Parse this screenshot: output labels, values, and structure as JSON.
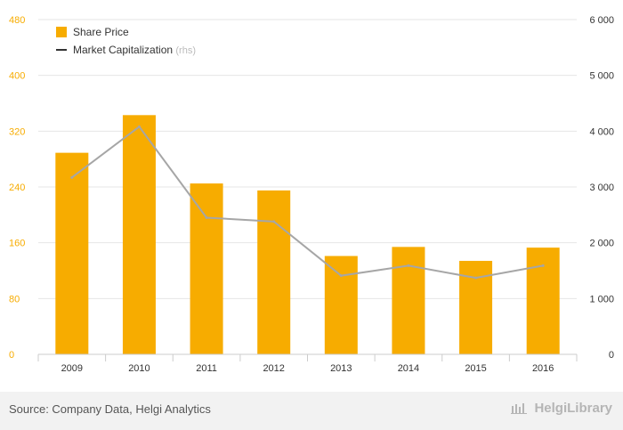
{
  "chart_data": {
    "type": "bar+line",
    "categories": [
      "2009",
      "2010",
      "2011",
      "2012",
      "2013",
      "2014",
      "2015",
      "2016"
    ],
    "series": [
      {
        "name": "Share Price",
        "type": "bar",
        "axis": "left",
        "values": [
          289,
          343,
          245,
          235,
          141,
          154,
          134,
          153
        ]
      },
      {
        "name": "Market Capitalization",
        "type": "line",
        "axis": "right",
        "values": [
          3170,
          4080,
          2450,
          2380,
          1410,
          1590,
          1370,
          1590
        ]
      }
    ],
    "left_axis": {
      "min": 0,
      "max": 480,
      "ticks": [
        0,
        80,
        160,
        240,
        320,
        400,
        480
      ]
    },
    "right_axis": {
      "min": 0,
      "max": 6000,
      "ticks": [
        "0",
        "1 000",
        "2 000",
        "3 000",
        "4 000",
        "5 000",
        "6 000"
      ]
    },
    "legend": {
      "placement": "top-left",
      "rhs_note": "(rhs)"
    },
    "grid": true,
    "colors": {
      "bar": "#f7ac00",
      "line": "#a6a6a6",
      "left_tick": "#f7ac00",
      "right_tick": "#333333",
      "legend_line": "#333333"
    }
  },
  "footer": {
    "source": "Source: Company Data, Helgi Analytics",
    "brand": "HelgiLibrary"
  }
}
